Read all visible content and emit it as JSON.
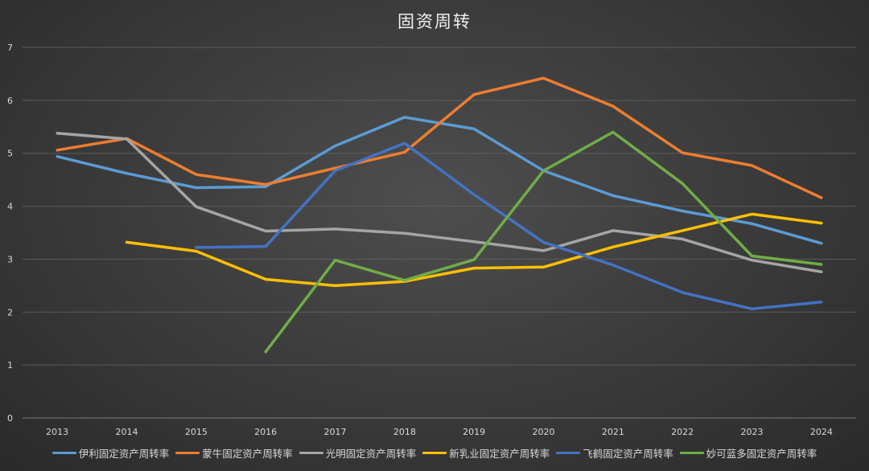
{
  "chart_data": {
    "type": "line",
    "title": "固资周转",
    "xlabel": "",
    "ylabel": "",
    "ylim": [
      0,
      7
    ],
    "yticks": [
      0,
      1,
      2,
      3,
      4,
      5,
      6,
      7
    ],
    "grid": true,
    "legend_position": "bottom",
    "categories": [
      "2013",
      "2014",
      "2015",
      "2016",
      "2017",
      "2018",
      "2019",
      "2020",
      "2021",
      "2022",
      "2023",
      "2024"
    ],
    "series": [
      {
        "name": "伊利固定资产周转率",
        "color": "#5b9bd5",
        "values": [
          4.94,
          4.62,
          4.35,
          4.37,
          5.14,
          5.68,
          5.46,
          4.67,
          4.2,
          3.91,
          3.67,
          3.3
        ]
      },
      {
        "name": "蒙牛固定资产周转率",
        "color": "#ed7d31",
        "values": [
          5.06,
          5.28,
          4.6,
          4.41,
          4.72,
          5.02,
          6.11,
          6.42,
          5.89,
          5.01,
          4.77,
          4.16
        ]
      },
      {
        "name": "光明固定资产周转率",
        "color": "#a5a5a5",
        "values": [
          5.38,
          5.27,
          3.99,
          3.53,
          3.57,
          3.49,
          3.33,
          3.16,
          3.54,
          3.38,
          2.98,
          2.76
        ]
      },
      {
        "name": "新乳业固定资产周转率",
        "color": "#ffc000",
        "values": [
          null,
          3.32,
          3.15,
          2.62,
          2.5,
          2.58,
          2.83,
          2.85,
          3.23,
          3.54,
          3.85,
          3.68
        ]
      },
      {
        "name": "飞鹤固定资产周转率",
        "color": "#4472c4",
        "values": [
          null,
          null,
          3.22,
          3.24,
          4.67,
          5.19,
          4.22,
          3.32,
          2.89,
          2.37,
          2.06,
          2.19
        ]
      },
      {
        "name": "妙可蓝多固定资产周转率",
        "color": "#70ad47",
        "values": [
          null,
          null,
          null,
          1.25,
          2.98,
          2.6,
          2.99,
          4.67,
          5.4,
          4.43,
          3.06,
          2.9
        ]
      }
    ]
  }
}
